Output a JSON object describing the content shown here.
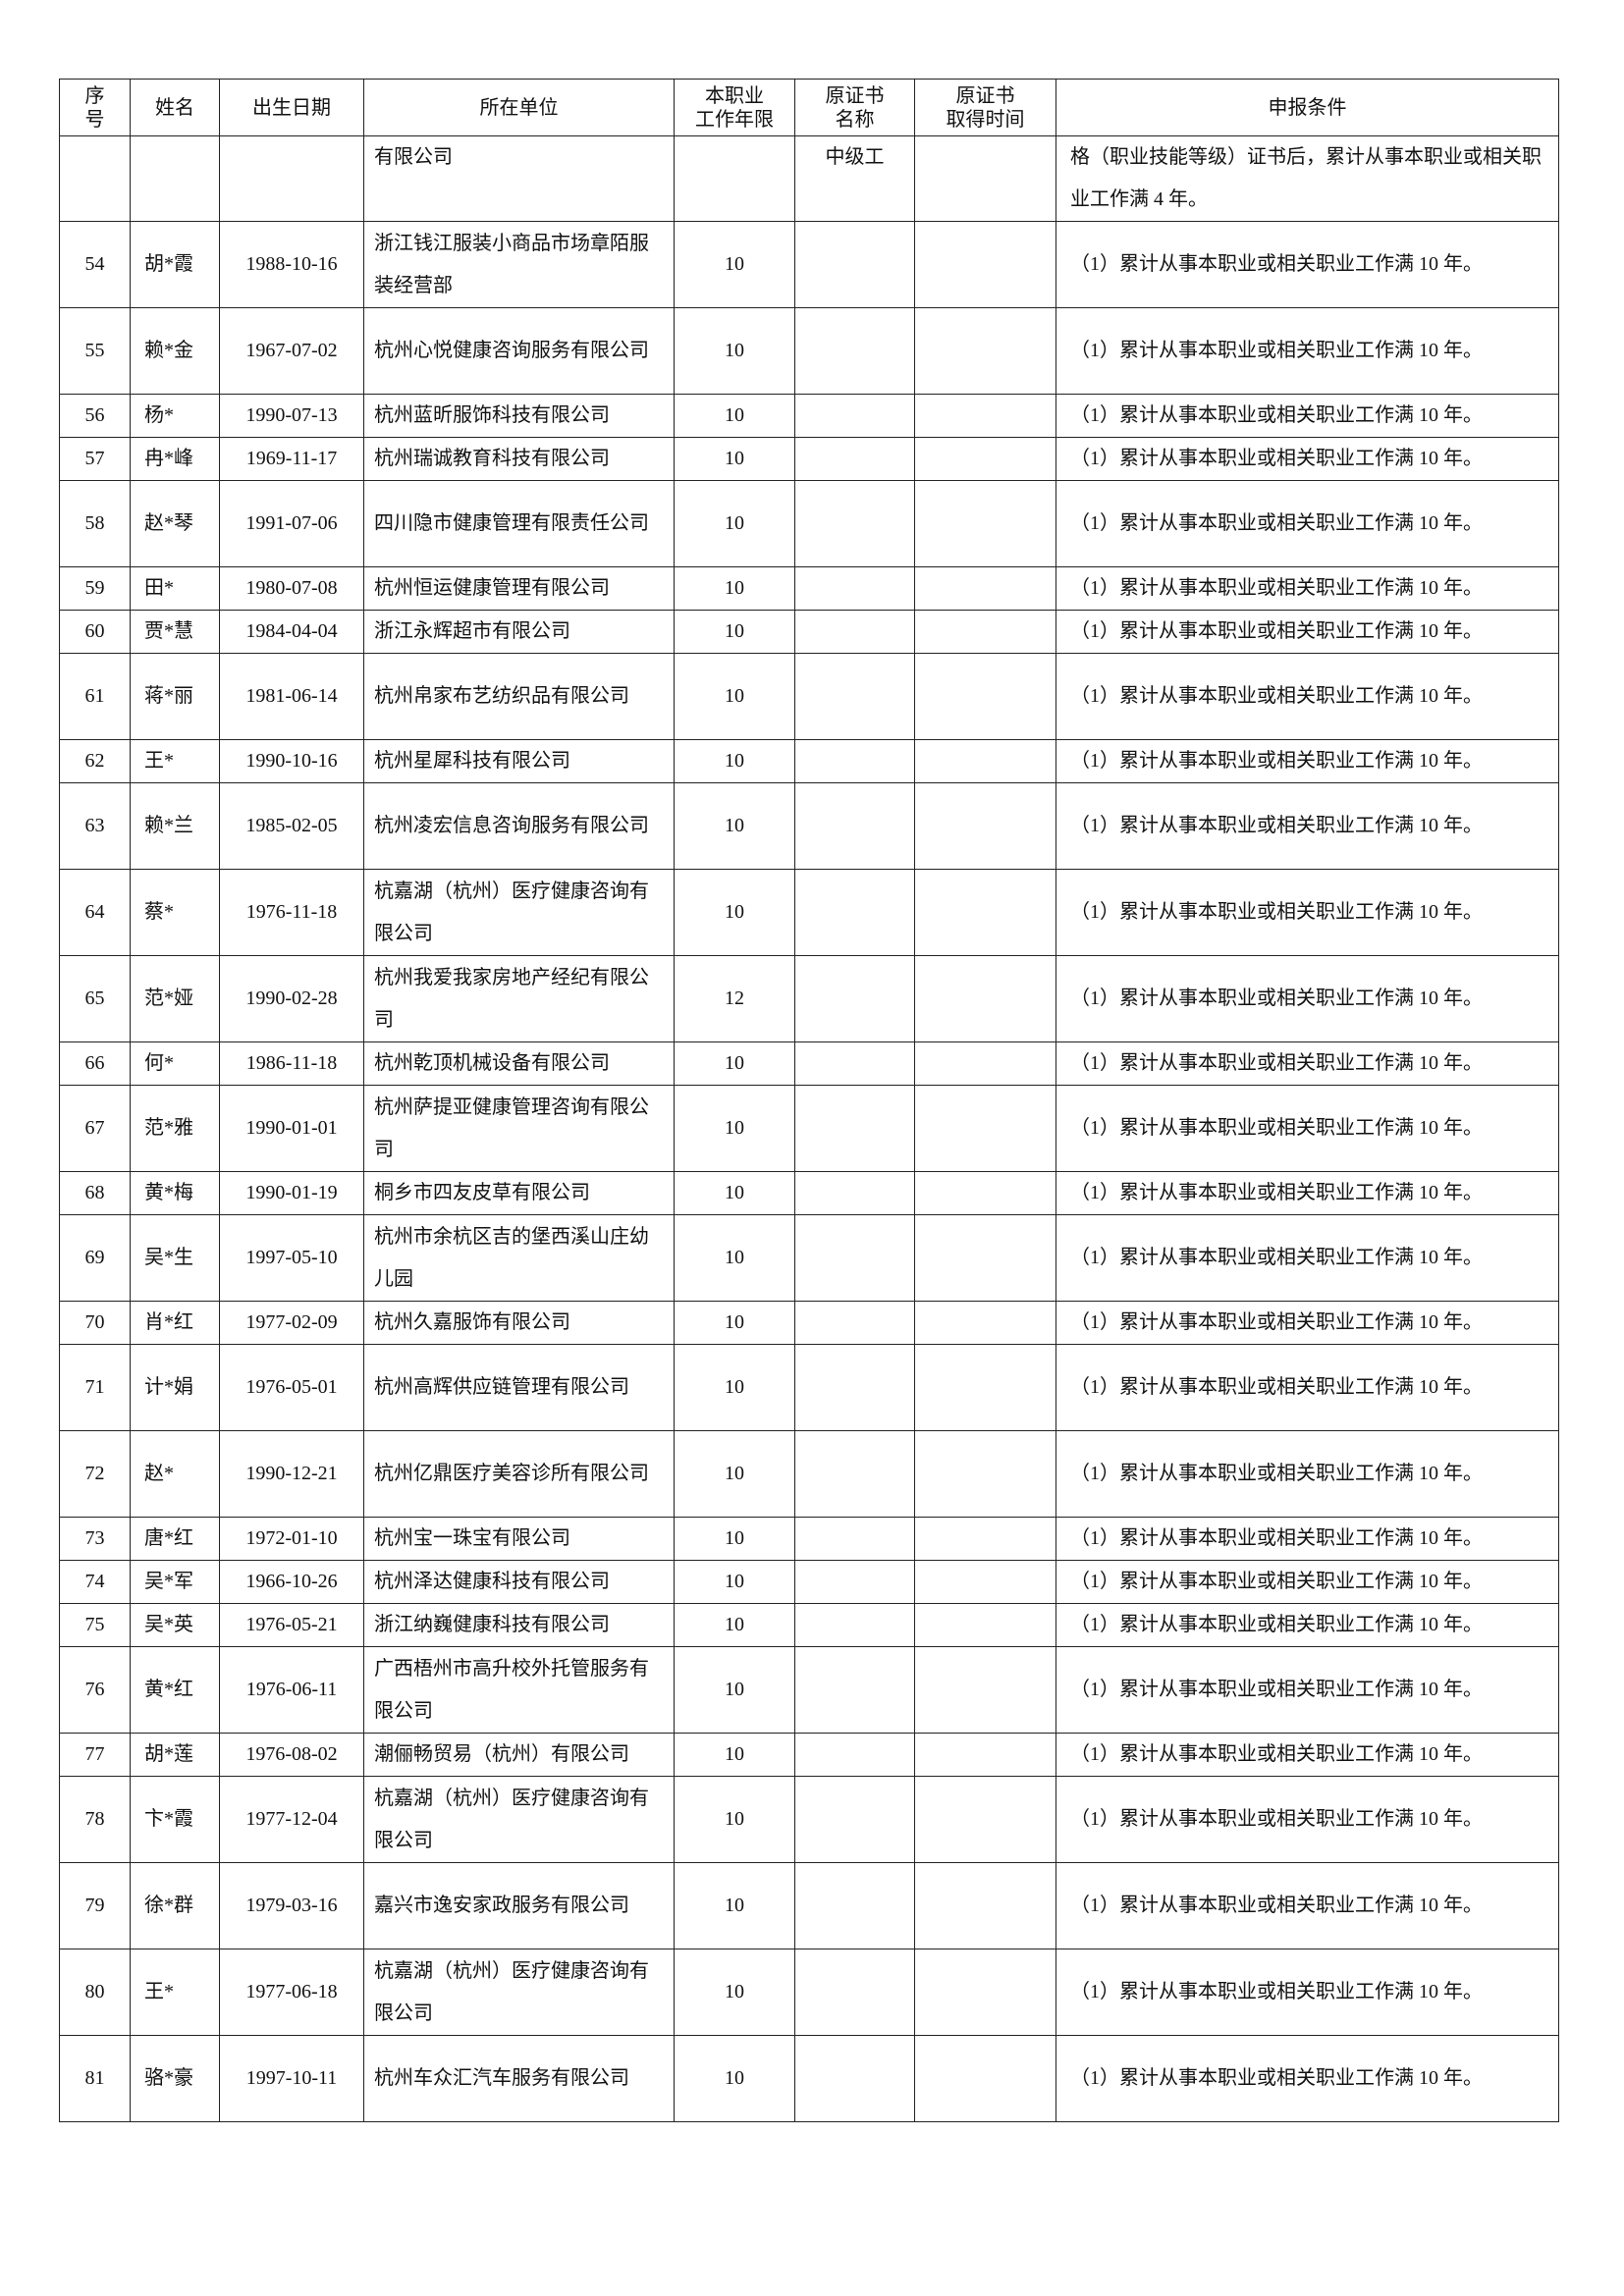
{
  "headers": [
    "序号",
    "姓名",
    "出生日期",
    "所在单位",
    "本职业工作年限",
    "原证书名称",
    "原证书取得时间",
    "申报条件"
  ],
  "header_lines": {
    "seq": [
      "序",
      "号"
    ],
    "years": [
      "本职业",
      "工作年限"
    ],
    "cert": [
      "原证书",
      "名称"
    ],
    "cert_time": [
      "原证书",
      "取得时间"
    ]
  },
  "continuation_row": {
    "unit": "有限公司",
    "cert_name": "中级工",
    "condition": "格（职业技能等级）证书后，累计从事本职业或相关职业工作满 4 年。"
  },
  "rows": [
    {
      "no": "54",
      "name": "胡*霞",
      "birth": "1988-10-16",
      "unit": "浙江钱江服装小商品市场章陌服装经营部",
      "years": "10",
      "cert": "",
      "cert_time": "",
      "condition": "（1）累计从事本职业或相关职业工作满 10 年。",
      "lines": 2
    },
    {
      "no": "55",
      "name": "赖*金",
      "birth": "1967-07-02",
      "unit": "杭州心悦健康咨询服务有限公司",
      "years": "10",
      "cert": "",
      "cert_time": "",
      "condition": "（1）累计从事本职业或相关职业工作满 10 年。",
      "lines": 2
    },
    {
      "no": "56",
      "name": "杨*",
      "birth": "1990-07-13",
      "unit": "杭州蓝昕服饰科技有限公司",
      "years": "10",
      "cert": "",
      "cert_time": "",
      "condition": "（1）累计从事本职业或相关职业工作满 10 年。",
      "lines": 1
    },
    {
      "no": "57",
      "name": "冉*峰",
      "birth": "1969-11-17",
      "unit": "杭州瑞诚教育科技有限公司",
      "years": "10",
      "cert": "",
      "cert_time": "",
      "condition": "（1）累计从事本职业或相关职业工作满 10 年。",
      "lines": 1
    },
    {
      "no": "58",
      "name": "赵*琴",
      "birth": "1991-07-06",
      "unit": "四川隐市健康管理有限责任公司",
      "years": "10",
      "cert": "",
      "cert_time": "",
      "condition": "（1）累计从事本职业或相关职业工作满 10 年。",
      "lines": 2
    },
    {
      "no": "59",
      "name": "田*",
      "birth": "1980-07-08",
      "unit": "杭州恒运健康管理有限公司",
      "years": "10",
      "cert": "",
      "cert_time": "",
      "condition": "（1）累计从事本职业或相关职业工作满 10 年。",
      "lines": 1
    },
    {
      "no": "60",
      "name": "贾*慧",
      "birth": "1984-04-04",
      "unit": "浙江永辉超市有限公司",
      "years": "10",
      "cert": "",
      "cert_time": "",
      "condition": "（1）累计从事本职业或相关职业工作满 10 年。",
      "lines": 1
    },
    {
      "no": "61",
      "name": "蒋*丽",
      "birth": "1981-06-14",
      "unit": "杭州帛家布艺纺织品有限公司",
      "years": "10",
      "cert": "",
      "cert_time": "",
      "condition": "（1）累计从事本职业或相关职业工作满 10 年。",
      "lines": 2
    },
    {
      "no": "62",
      "name": "王*",
      "birth": "1990-10-16",
      "unit": "杭州星犀科技有限公司",
      "years": "10",
      "cert": "",
      "cert_time": "",
      "condition": "（1）累计从事本职业或相关职业工作满 10 年。",
      "lines": 1
    },
    {
      "no": "63",
      "name": "赖*兰",
      "birth": "1985-02-05",
      "unit": "杭州凌宏信息咨询服务有限公司",
      "years": "10",
      "cert": "",
      "cert_time": "",
      "condition": "（1）累计从事本职业或相关职业工作满 10 年。",
      "lines": 2
    },
    {
      "no": "64",
      "name": "蔡*",
      "birth": "1976-11-18",
      "unit": "杭嘉湖（杭州）医疗健康咨询有限公司",
      "years": "10",
      "cert": "",
      "cert_time": "",
      "condition": "（1）累计从事本职业或相关职业工作满 10 年。",
      "lines": 2
    },
    {
      "no": "65",
      "name": "范*娅",
      "birth": "1990-02-28",
      "unit": "杭州我爱我家房地产经纪有限公司",
      "years": "12",
      "cert": "",
      "cert_time": "",
      "condition": "（1）累计从事本职业或相关职业工作满 10 年。",
      "lines": 2
    },
    {
      "no": "66",
      "name": "何*",
      "birth": "1986-11-18",
      "unit": "杭州乾顶机械设备有限公司",
      "years": "10",
      "cert": "",
      "cert_time": "",
      "condition": "（1）累计从事本职业或相关职业工作满 10 年。",
      "lines": 1
    },
    {
      "no": "67",
      "name": "范*雅",
      "birth": "1990-01-01",
      "unit": "杭州萨提亚健康管理咨询有限公司",
      "years": "10",
      "cert": "",
      "cert_time": "",
      "condition": "（1）累计从事本职业或相关职业工作满 10 年。",
      "lines": 2
    },
    {
      "no": "68",
      "name": "黄*梅",
      "birth": "1990-01-19",
      "unit": "桐乡市四友皮草有限公司",
      "years": "10",
      "cert": "",
      "cert_time": "",
      "condition": "（1）累计从事本职业或相关职业工作满 10 年。",
      "lines": 1
    },
    {
      "no": "69",
      "name": "吴*生",
      "birth": "1997-05-10",
      "unit": "杭州市余杭区吉的堡西溪山庄幼儿园",
      "years": "10",
      "cert": "",
      "cert_time": "",
      "condition": "（1）累计从事本职业或相关职业工作满 10 年。",
      "lines": 2
    },
    {
      "no": "70",
      "name": "肖*红",
      "birth": "1977-02-09",
      "unit": "杭州久嘉服饰有限公司",
      "years": "10",
      "cert": "",
      "cert_time": "",
      "condition": "（1）累计从事本职业或相关职业工作满 10 年。",
      "lines": 1
    },
    {
      "no": "71",
      "name": "计*娟",
      "birth": "1976-05-01",
      "unit": "杭州高辉供应链管理有限公司",
      "years": "10",
      "cert": "",
      "cert_time": "",
      "condition": "（1）累计从事本职业或相关职业工作满 10 年。",
      "lines": 2
    },
    {
      "no": "72",
      "name": "赵*",
      "birth": "1990-12-21",
      "unit": "杭州亿鼎医疗美容诊所有限公司",
      "years": "10",
      "cert": "",
      "cert_time": "",
      "condition": "（1）累计从事本职业或相关职业工作满 10 年。",
      "lines": 2
    },
    {
      "no": "73",
      "name": "唐*红",
      "birth": "1972-01-10",
      "unit": "杭州宝一珠宝有限公司",
      "years": "10",
      "cert": "",
      "cert_time": "",
      "condition": "（1）累计从事本职业或相关职业工作满 10 年。",
      "lines": 1
    },
    {
      "no": "74",
      "name": "吴*军",
      "birth": "1966-10-26",
      "unit": "杭州泽达健康科技有限公司",
      "years": "10",
      "cert": "",
      "cert_time": "",
      "condition": "（1）累计从事本职业或相关职业工作满 10 年。",
      "lines": 1
    },
    {
      "no": "75",
      "name": "吴*英",
      "birth": "1976-05-21",
      "unit": "浙江纳巍健康科技有限公司",
      "years": "10",
      "cert": "",
      "cert_time": "",
      "condition": "（1）累计从事本职业或相关职业工作满 10 年。",
      "lines": 1
    },
    {
      "no": "76",
      "name": "黄*红",
      "birth": "1976-06-11",
      "unit": "广西梧州市高升校外托管服务有限公司",
      "years": "10",
      "cert": "",
      "cert_time": "",
      "condition": "（1）累计从事本职业或相关职业工作满 10 年。",
      "lines": 2
    },
    {
      "no": "77",
      "name": "胡*莲",
      "birth": "1976-08-02",
      "unit": "潮俪畅贸易（杭州）有限公司",
      "years": "10",
      "cert": "",
      "cert_time": "",
      "condition": "（1）累计从事本职业或相关职业工作满 10 年。",
      "lines": 1
    },
    {
      "no": "78",
      "name": "卞*霞",
      "birth": "1977-12-04",
      "unit": "杭嘉湖（杭州）医疗健康咨询有限公司",
      "years": "10",
      "cert": "",
      "cert_time": "",
      "condition": "（1）累计从事本职业或相关职业工作满 10 年。",
      "lines": 2
    },
    {
      "no": "79",
      "name": "徐*群",
      "birth": "1979-03-16",
      "unit": "嘉兴市逸安家政服务有限公司",
      "years": "10",
      "cert": "",
      "cert_time": "",
      "condition": "（1）累计从事本职业或相关职业工作满 10 年。",
      "lines": 2
    },
    {
      "no": "80",
      "name": "王*",
      "birth": "1977-06-18",
      "unit": "杭嘉湖（杭州）医疗健康咨询有限公司",
      "years": "10",
      "cert": "",
      "cert_time": "",
      "condition": "（1）累计从事本职业或相关职业工作满 10 年。",
      "lines": 2
    },
    {
      "no": "81",
      "name": "骆*豪",
      "birth": "1997-10-11",
      "unit": "杭州车众汇汽车服务有限公司",
      "years": "10",
      "cert": "",
      "cert_time": "",
      "condition": "（1）累计从事本职业或相关职业工作满 10 年。",
      "lines": 2
    }
  ]
}
